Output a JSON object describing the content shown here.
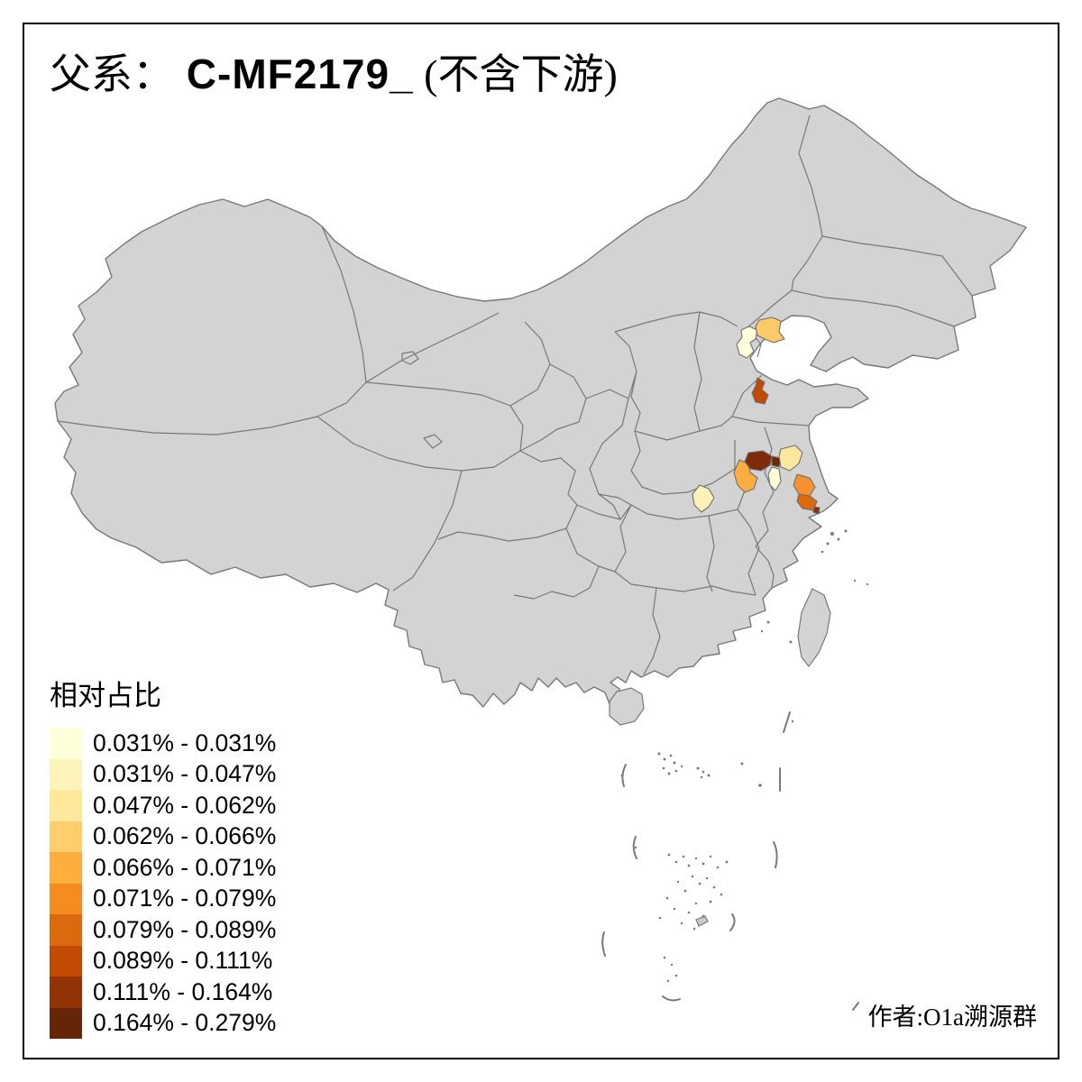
{
  "title": {
    "prefix": "父系：",
    "code": " C-MF2179_",
    "suffix": " (不含下游)"
  },
  "legend": {
    "title": "相对占比",
    "classes": [
      {
        "label": "0.031% - 0.031%",
        "color": "#FFFFDC"
      },
      {
        "label": "0.031% - 0.047%",
        "color": "#FCF4BB"
      },
      {
        "label": "0.047% - 0.062%",
        "color": "#FEE89C"
      },
      {
        "label": "0.062% - 0.066%",
        "color": "#FDCE6B"
      },
      {
        "label": "0.066% - 0.071%",
        "color": "#FDAE3C"
      },
      {
        "label": "0.071% - 0.079%",
        "color": "#F58C1F"
      },
      {
        "label": "0.079% - 0.089%",
        "color": "#DB690E"
      },
      {
        "label": "0.089% - 0.111%",
        "color": "#C24A02"
      },
      {
        "label": "0.111% - 0.164%",
        "color": "#913305"
      },
      {
        "label": "0.164% - 0.279%",
        "color": "#652508"
      }
    ]
  },
  "attribution": "作者:O1a溯源群",
  "map": {
    "land_color": "#D3D3D3",
    "border_color": "#787878",
    "sea_color": "#FFFFFF",
    "frame_color": "#000000",
    "regions": [
      {
        "id": "beijing-area",
        "color": "#FFFFDC"
      },
      {
        "id": "tangshan-area",
        "color": "#FCCB67"
      },
      {
        "id": "shandong-mid",
        "color": "#C24A02"
      },
      {
        "id": "hubei-area",
        "color": "#FBF2B8"
      },
      {
        "id": "anhui-west",
        "color": "#FBAD41"
      },
      {
        "id": "anhui-dark-large",
        "color": "#7E2B0A"
      },
      {
        "id": "anhui-dark-small",
        "color": "#6F2708"
      },
      {
        "id": "jiangsu-cream",
        "color": "#FFFBD6"
      },
      {
        "id": "jiangsu-light",
        "color": "#FBE79E"
      },
      {
        "id": "jiangsu-orange",
        "color": "#F79130"
      },
      {
        "id": "nantong-dark-orange",
        "color": "#DD690E"
      },
      {
        "id": "shanghai-dot",
        "color": "#8A2F06"
      }
    ]
  }
}
